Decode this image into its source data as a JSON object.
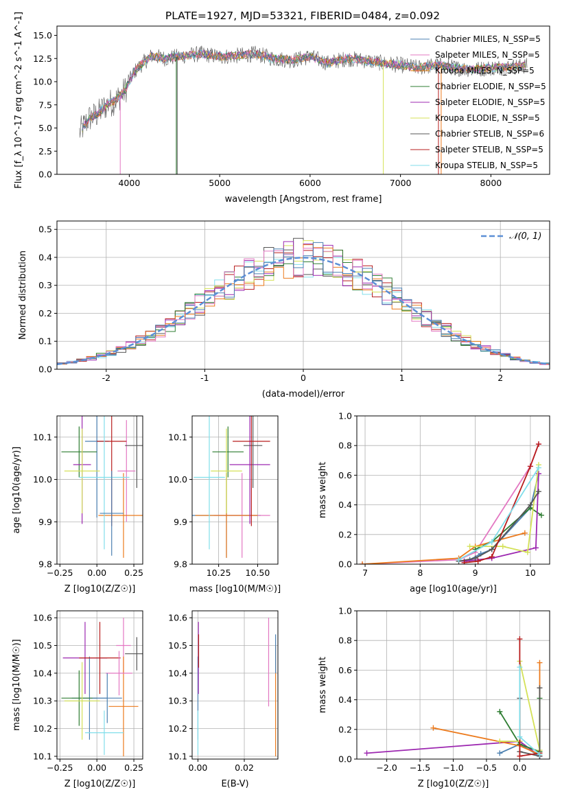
{
  "figure": {
    "title": "PLATE=1927, MJD=53321, FIBERID=0484, z=0.092"
  },
  "colors": {
    "chabrier_miles": "#4a7fb0",
    "salpeter_miles": "#e377c2",
    "kroupa_miles": "#ec7a1c",
    "chabrier_elodie": "#2e7d32",
    "salpeter_elodie": "#9c27b0",
    "kroupa_elodie": "#d4e157",
    "chabrier_stelib": "#555555",
    "salpeter_stelib": "#b71c1c",
    "kroupa_stelib": "#80deea",
    "gaussian": "#5b8fd6",
    "grid": "#b0b0b0"
  },
  "chart_data": [
    {
      "id": "spectrum",
      "type": "line",
      "title": "PLATE=1927, MJD=53321, FIBERID=0484, z=0.092",
      "xlabel": "wavelength [Angstrom, rest frame]",
      "ylabel": "Flux [f_λ 10^-17 erg cm^-2 s^-1 A^-1]",
      "xlim": [
        3200,
        8650
      ],
      "ylim": [
        0,
        16
      ],
      "xticks": [
        4000,
        5000,
        6000,
        7000,
        8000
      ],
      "yticks": [
        0.0,
        2.5,
        5.0,
        7.5,
        10.0,
        12.5,
        15.0
      ],
      "grid": false,
      "legend_position": "top-right",
      "legend": [
        "Chabrier MILES, N_SSP=5",
        "Salpeter MILES, N_SSP=5",
        "Kroupa MILES, N_SSP=5",
        "Chabrier ELODIE, N_SSP=5",
        "Salpeter ELODIE, N_SSP=5",
        "Kroupa ELODIE, N_SSP=5",
        "Chabrier STELIB, N_SSP=6",
        "Salpeter STELIB, N_SSP=5",
        "Kroupa STELIB, N_SSP=5"
      ],
      "data_x": [
        3450,
        3550,
        3650,
        3750,
        3850,
        3950,
        4050,
        4150,
        4250,
        4400,
        4600,
        4800,
        5000,
        5200,
        5400,
        5600,
        5800,
        6000,
        6200,
        6400,
        6600,
        6800,
        7000,
        7200,
        7400,
        7600,
        7800,
        8000,
        8200,
        8400
      ],
      "data_y": [
        4.5,
        6.0,
        6.5,
        7.5,
        8.0,
        9.0,
        11.0,
        12.0,
        12.8,
        12.5,
        12.8,
        13.0,
        12.7,
        12.8,
        13.0,
        12.5,
        12.3,
        12.7,
        12.0,
        12.5,
        12.3,
        12.0,
        11.8,
        11.5,
        11.8,
        11.5,
        11.3,
        11.5,
        11.6,
        11.7
      ]
    },
    {
      "id": "residuals",
      "type": "line",
      "xlabel": "(data-model)/error",
      "ylabel": "Normed distribution",
      "xlim": [
        -2.5,
        2.5
      ],
      "ylim": [
        0,
        0.53
      ],
      "xticks": [
        -2,
        -1,
        0,
        1,
        2
      ],
      "yticks": [
        0.0,
        0.1,
        0.2,
        0.3,
        0.4,
        0.5
      ],
      "grid": true,
      "legend_position": "top-right",
      "legend": [
        "𝒩(0, 1)"
      ],
      "histogram_bins": 50
    },
    {
      "id": "age-vs-Z",
      "type": "scatter",
      "xlabel": "Z [log10(Z/Z☉)]",
      "ylabel": "age  [log10(age/yr)]",
      "xlim": [
        -0.27,
        0.31
      ],
      "ylim": [
        9.8,
        10.15
      ],
      "xticks": [
        -0.25,
        0.0,
        0.25
      ],
      "xtick_labels": [
        "−0.25",
        "0.00",
        "0.25"
      ],
      "yticks": [
        9.8,
        9.9,
        10.0,
        10.1
      ],
      "ytick_labels": [
        "9.8",
        "9.9",
        "10.0",
        "10.1"
      ],
      "grid": true,
      "points": [
        {
          "x": 0.0,
          "y": 10.09,
          "xerr": 0.08,
          "yerr": 0.18,
          "series": 0
        },
        {
          "x": 0.2,
          "y": 10.02,
          "xerr": 0.06,
          "yerr": 0.12,
          "series": 1
        },
        {
          "x": 0.18,
          "y": 9.915,
          "xerr": 0.17,
          "yerr": 0.1,
          "series": 2
        },
        {
          "x": -0.12,
          "y": 10.065,
          "xerr": 0.12,
          "yerr": 0.06,
          "series": 3
        },
        {
          "x": -0.1,
          "y": 10.035,
          "xerr": 0.06,
          "yerr": 0.14,
          "series": 4
        },
        {
          "x": -0.1,
          "y": 10.02,
          "xerr": 0.12,
          "yerr": 0.1,
          "series": 5
        },
        {
          "x": 0.27,
          "y": 10.08,
          "xerr": 0.08,
          "yerr": 0.1,
          "series": 6
        },
        {
          "x": 0.1,
          "y": 10.09,
          "xerr": 0.1,
          "yerr": 0.2,
          "series": 7
        },
        {
          "x": 0.05,
          "y": 10.005,
          "xerr": 0.17,
          "yerr": 0.17,
          "series": 8
        },
        {
          "x": 0.1,
          "y": 9.92,
          "xerr": 0.08,
          "yerr": 0.1,
          "series": 0
        }
      ]
    },
    {
      "id": "age-vs-mass",
      "type": "scatter",
      "xlabel": "mass [log10(M/M☉)]",
      "xlim": [
        10.08,
        10.63
      ],
      "ylim": [
        9.8,
        10.15
      ],
      "xticks": [
        10.25,
        10.5
      ],
      "xtick_labels": [
        "10.25",
        "10.50"
      ],
      "yticks": [
        9.8,
        9.9,
        10.0,
        10.1
      ],
      "ytick_labels": [
        "9.8",
        "9.9",
        "10.0",
        "10.1"
      ],
      "grid": true,
      "points": [
        {
          "x": 10.3,
          "y": 9.915,
          "xerr": 0.22,
          "yerr": 0.1,
          "series": 0
        },
        {
          "x": 10.4,
          "y": 9.915,
          "xerr": 0.18,
          "yerr": 0.1,
          "series": 1
        },
        {
          "x": 10.3,
          "y": 9.915,
          "xerr": 0.2,
          "yerr": 0.1,
          "series": 2
        },
        {
          "x": 10.31,
          "y": 10.065,
          "xerr": 0.1,
          "yerr": 0.06,
          "series": 3
        },
        {
          "x": 10.45,
          "y": 10.035,
          "xerr": 0.13,
          "yerr": 0.14,
          "series": 4
        },
        {
          "x": 10.3,
          "y": 10.02,
          "xerr": 0.1,
          "yerr": 0.1,
          "series": 5
        },
        {
          "x": 10.47,
          "y": 10.08,
          "xerr": 0.06,
          "yerr": 0.1,
          "series": 6
        },
        {
          "x": 10.46,
          "y": 10.09,
          "xerr": 0.12,
          "yerr": 0.2,
          "series": 7
        },
        {
          "x": 10.19,
          "y": 10.005,
          "xerr": 0.1,
          "yerr": 0.17,
          "series": 8
        }
      ]
    },
    {
      "id": "weight-vs-age",
      "type": "line",
      "xlabel": "age  [log10(age/yr)]",
      "ylabel": "mass weight",
      "xlim": [
        6.85,
        10.35
      ],
      "ylim": [
        0,
        1
      ],
      "xticks": [
        7,
        8,
        9,
        10
      ],
      "yticks": [
        0.0,
        0.2,
        0.4,
        0.6,
        0.8,
        1.0
      ],
      "grid": true,
      "series": [
        {
          "x": [
            8.9,
            9.1,
            9.3,
            10.0,
            10.15
          ],
          "y": [
            0.03,
            0.07,
            0.1,
            0.38,
            0.61
          ],
          "color_index": 0
        },
        {
          "x": [
            6.95,
            8.7,
            9.0,
            10.0,
            10.15
          ],
          "y": [
            0.0,
            0.03,
            0.08,
            0.66,
            0.81
          ],
          "color_index": 1
        },
        {
          "x": [
            6.95,
            8.7,
            9.0,
            9.9
          ],
          "y": [
            0.0,
            0.04,
            0.12,
            0.21
          ],
          "color_index": 2
        },
        {
          "x": [
            9.0,
            9.3,
            10.0,
            10.2
          ],
          "y": [
            0.1,
            0.15,
            0.38,
            0.33
          ],
          "color_index": 3
        },
        {
          "x": [
            8.8,
            9.3,
            10.1,
            10.15
          ],
          "y": [
            0.02,
            0.04,
            0.11,
            0.61
          ],
          "color_index": 4
        },
        {
          "x": [
            8.9,
            9.5,
            9.95,
            10.15
          ],
          "y": [
            0.12,
            0.12,
            0.08,
            0.67
          ],
          "color_index": 5
        },
        {
          "x": [
            8.7,
            9.0,
            9.3,
            10.0,
            10.15
          ],
          "y": [
            0.02,
            0.04,
            0.1,
            0.4,
            0.49
          ],
          "color_index": 6
        },
        {
          "x": [
            8.8,
            9.05,
            9.3,
            10.0,
            10.15
          ],
          "y": [
            0.01,
            0.02,
            0.05,
            0.66,
            0.81
          ],
          "color_index": 7
        },
        {
          "x": [
            8.7,
            9.3,
            10.15
          ],
          "y": [
            0.03,
            0.15,
            0.65
          ],
          "color_index": 8
        }
      ]
    },
    {
      "id": "mass-vs-Z",
      "type": "scatter",
      "xlabel": "Z [log10(Z/Z☉)]",
      "ylabel": "mass [log10(M/M☉)]",
      "xlim": [
        -0.27,
        0.31
      ],
      "ylim": [
        10.09,
        10.625
      ],
      "xticks": [
        -0.25,
        0.0,
        0.25
      ],
      "xtick_labels": [
        "−0.25",
        "0.00",
        "0.25"
      ],
      "yticks": [
        10.1,
        10.2,
        10.3,
        10.4,
        10.5,
        10.6
      ],
      "ytick_labels": [
        "10.1",
        "10.2",
        "10.3",
        "10.4",
        "10.5",
        "10.6"
      ],
      "grid": true,
      "points": [
        {
          "x": -0.05,
          "y": 10.31,
          "xerr": 0.12,
          "yerr": 0.15,
          "series": 0
        },
        {
          "x": 0.18,
          "y": 10.5,
          "xerr": 0.05,
          "yerr": 0.1,
          "series": 1
        },
        {
          "x": 0.18,
          "y": 10.28,
          "xerr": 0.1,
          "yerr": 0.18,
          "series": 2
        },
        {
          "x": -0.12,
          "y": 10.31,
          "xerr": 0.12,
          "yerr": 0.1,
          "series": 3
        },
        {
          "x": -0.08,
          "y": 10.455,
          "xerr": 0.15,
          "yerr": 0.13,
          "series": 4
        },
        {
          "x": -0.1,
          "y": 10.3,
          "xerr": 0.12,
          "yerr": 0.14,
          "series": 5
        },
        {
          "x": 0.27,
          "y": 10.47,
          "xerr": 0.08,
          "yerr": 0.06,
          "series": 6
        },
        {
          "x": 0.02,
          "y": 10.455,
          "xerr": 0.14,
          "yerr": 0.13,
          "series": 7
        },
        {
          "x": 0.05,
          "y": 10.185,
          "xerr": 0.13,
          "yerr": 0.08,
          "series": 8
        },
        {
          "x": 0.15,
          "y": 10.4,
          "xerr": 0.09,
          "yerr": 0.08,
          "series": 1
        },
        {
          "x": 0.07,
          "y": 10.31,
          "xerr": 0.1,
          "yerr": 0.09,
          "series": 0
        }
      ]
    },
    {
      "id": "mass-vs-ebv",
      "type": "scatter",
      "xlabel": "E(B-V)",
      "xlim": [
        -0.0025,
        0.0345
      ],
      "ylim": [
        10.09,
        10.625
      ],
      "xticks": [
        0.0,
        0.02
      ],
      "xtick_labels": [
        "0.00",
        "0.02"
      ],
      "yticks": [
        10.1,
        10.2,
        10.3,
        10.4,
        10.5,
        10.6
      ],
      "ytick_labels": [
        "10.1",
        "10.2",
        "10.3",
        "10.4",
        "10.5",
        "10.6"
      ],
      "grid": true,
      "points": [
        {
          "x": 0.0,
          "y": 10.31,
          "xerr": 0,
          "yerr": 0.15,
          "series": 0
        },
        {
          "x": 0.0305,
          "y": 10.44,
          "xerr": 0,
          "yerr": 0.16,
          "series": 1
        },
        {
          "x": 0.0335,
          "y": 10.3,
          "xerr": 0,
          "yerr": 0.2,
          "series": 2
        },
        {
          "x": 0.0002,
          "y": 10.455,
          "xerr": 0,
          "yerr": 0.13,
          "series": 4
        },
        {
          "x": 0.0003,
          "y": 10.48,
          "xerr": 0,
          "yerr": 0.06,
          "series": 7
        },
        {
          "x": 0.0,
          "y": 10.185,
          "xerr": 0,
          "yerr": 0.08,
          "series": 8
        },
        {
          "x": 0.0335,
          "y": 10.47,
          "xerr": 0,
          "yerr": 0.07,
          "series": 0
        }
      ]
    },
    {
      "id": "weight-vs-Z",
      "type": "line",
      "xlabel": "Z [log10(Z/Z☉)]",
      "ylabel": "mass weight",
      "xlim": [
        -2.45,
        0.45
      ],
      "ylim": [
        0,
        1
      ],
      "xticks": [
        -2.0,
        -1.5,
        -1.0,
        -0.5,
        0.0
      ],
      "xtick_labels": [
        "−2.0",
        "−1.5",
        "−1.0",
        "−0.5",
        "0.0"
      ],
      "yticks": [
        0.0,
        0.2,
        0.4,
        0.6,
        0.8,
        1.0
      ],
      "grid": true,
      "series": [
        {
          "x": [
            -0.3,
            -0.0,
            0.3
          ],
          "y": [
            0.04,
            0.1,
            0.02
          ],
          "color_index": 0
        },
        {
          "x": [
            -2.3,
            0.0,
            0.3
          ],
          "y": [
            0.04,
            0.12,
            0.02
          ],
          "color_index": 4
        },
        {
          "x": [
            -1.3,
            0.0,
            0.3,
            0.3
          ],
          "y": [
            0.21,
            0.09,
            0.03,
            0.65
          ],
          "color_index": 2
        },
        {
          "x": [
            -0.3,
            0.0,
            0.3,
            0.3
          ],
          "y": [
            0.32,
            0.1,
            0.05,
            0.41
          ],
          "color_index": 3
        },
        {
          "x": [
            -0.3,
            0.0,
            0.0,
            0.3
          ],
          "y": [
            0.12,
            0.12,
            0.66,
            0.06
          ],
          "color_index": 5
        },
        {
          "x": [
            0.0,
            0.0,
            0.3,
            0.3
          ],
          "y": [
            0.41,
            0.05,
            0.02,
            0.48
          ],
          "color_index": 6
        },
        {
          "x": [
            0.0,
            0.0,
            0.3
          ],
          "y": [
            0.81,
            0.02,
            0.04
          ],
          "color_index": 7
        },
        {
          "x": [
            0.0,
            0.0,
            0.3
          ],
          "y": [
            0.62,
            0.15,
            0.03
          ],
          "color_index": 8
        }
      ]
    }
  ]
}
